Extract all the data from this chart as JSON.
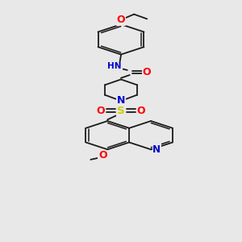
{
  "background_color": "#e8e8e8",
  "colors": {
    "bond": "#1a1a1a",
    "O": "#ff0000",
    "N": "#0000cc",
    "S": "#cccc00"
  },
  "bond_lw": 1.3,
  "font_size": 8.0,
  "fig_width": 3.0,
  "fig_height": 3.0,
  "dpi": 100,
  "xlim": [
    0.25,
    0.75
  ],
  "ylim": [
    0.1,
    0.98
  ]
}
